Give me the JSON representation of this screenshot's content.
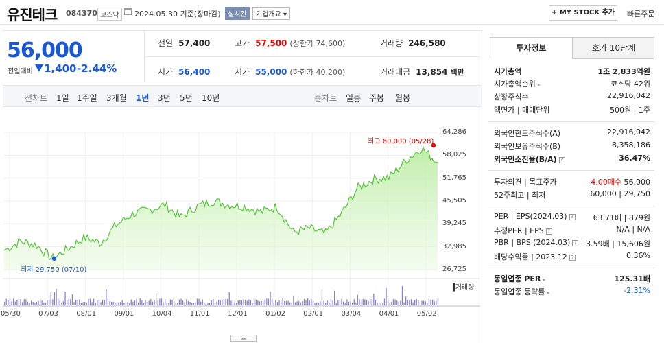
{
  "header": {
    "name": "유진테크",
    "code": "084370",
    "market": "코스닥",
    "date": "2024.05.30  기준(장마감)",
    "realtime": "실시간",
    "overview": "기업개요 ▾",
    "mystock": "+ MY STOCK 추가",
    "quick_order": "빠른주문"
  },
  "price": {
    "current": "56,000",
    "compare_label": "전일대비",
    "change": "1,400",
    "rate": "-2.44%"
  },
  "quote": {
    "prev_label": "전일",
    "prev": "57,400",
    "high_label": "고가",
    "high": "57,500",
    "upper_limit": "(상한가 74,600)",
    "volume_label": "거래량",
    "volume": "246,580",
    "open_label": "시가",
    "open": "56,400",
    "low_label": "저가",
    "low": "55,000",
    "lower_limit": "(하한가 40,200)",
    "amount_label": "거래대금",
    "amount": "13,854",
    "amount_unit": "백만"
  },
  "period_tabs": {
    "line_label": "선차트",
    "items": [
      "1일",
      "1주일",
      "3개월",
      "1년",
      "3년",
      "5년",
      "10년"
    ],
    "selected": "1년",
    "candle_label": "봉차트",
    "candle_items": [
      "일봉",
      "주봉",
      "월봉"
    ]
  },
  "chart_data": {
    "type": "area",
    "yticks": [
      "64,286",
      "58,025",
      "51,765",
      "45,505",
      "39,245",
      "32,985",
      "26,725"
    ],
    "ylim": [
      26725,
      64286
    ],
    "xticks": [
      "05/30",
      "07/03",
      "08/01",
      "09/01",
      "10/04",
      "11/01",
      "12/01",
      "01/02",
      "02/01",
      "03/04",
      "04/01",
      "05/02"
    ],
    "high_label": "최고 60,000 (05/28)",
    "low_label": "최저 29,750 (07/10)",
    "volume_legend": "거래량",
    "x": [
      "05/30",
      "06/13",
      "06/27",
      "07/10",
      "07/24",
      "08/07",
      "08/21",
      "09/04",
      "09/18",
      "10/02",
      "10/16",
      "10/30",
      "11/13",
      "11/27",
      "12/11",
      "12/26",
      "01/09",
      "01/23",
      "02/06",
      "02/20",
      "03/05",
      "03/19",
      "04/02",
      "04/16",
      "04/30",
      "05/14",
      "05/28",
      "05/30"
    ],
    "values": [
      32000,
      34500,
      33500,
      29750,
      32500,
      35500,
      34000,
      39000,
      42000,
      43000,
      44500,
      41000,
      44000,
      45500,
      44500,
      44000,
      42500,
      44000,
      37000,
      38000,
      36500,
      42000,
      49000,
      51500,
      52000,
      56500,
      60000,
      56000
    ],
    "color": "#55c23a"
  },
  "right_panel": {
    "tab_invest": "투자정보",
    "tab_order": "호가 10단계",
    "rows": [
      {
        "label": "시가총액",
        "value": "1조 2,833억원",
        "bold": true
      },
      {
        "label": "시가총액순위",
        "value": "코스닥 42위"
      },
      {
        "label": "상장주식수",
        "value": "22,916,042"
      },
      {
        "label": "액면가 | 매매단위",
        "value": "500원 | 1주"
      },
      {
        "label": "외국인한도주식수(A)",
        "value": "22,916,042"
      },
      {
        "label": "외국인보유주식수(B)",
        "value": "8,358,186"
      },
      {
        "label": "외국인소진율(B/A)",
        "value": "36.47%",
        "bold": true
      },
      {
        "label": "투자의견 | 목표주가",
        "value_a": "4.00매수",
        "value_b": "56,000"
      },
      {
        "label": "52주최고 | 최저",
        "value": "60,000 | 29,750"
      },
      {
        "label": "PER | EPS(2024.03)",
        "value": "63.71배 | 879원"
      },
      {
        "label": "추정PER | EPS",
        "value": "N/A | N/A"
      },
      {
        "label": "PBR | BPS (2024.03)",
        "value": "3.59배 | 15,606원"
      },
      {
        "label": "배당수익률 | 2023.12",
        "value": "0.36%"
      },
      {
        "label": "동일업종 PER",
        "value": "125.31배",
        "bold": true
      },
      {
        "label": "동일업종 등락률",
        "value": "-2.31%"
      }
    ]
  },
  "toggle": "︽"
}
